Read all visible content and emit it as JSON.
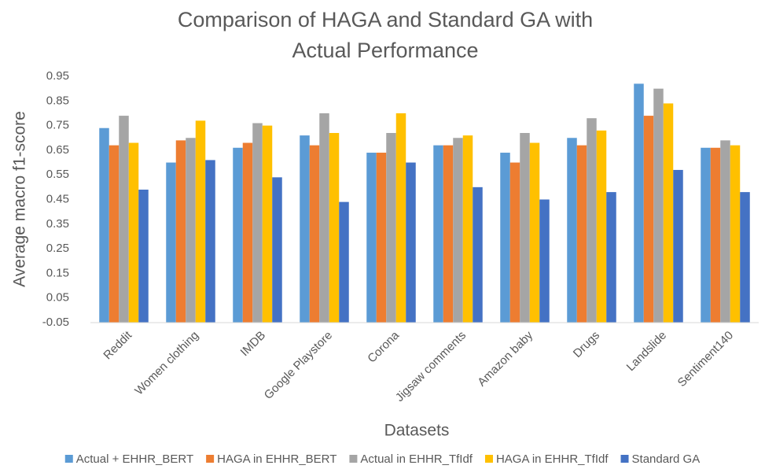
{
  "chart_data": {
    "type": "bar",
    "title": [
      "Comparison of HAGA and Standard GA with",
      "Actual Performance"
    ],
    "x_label": "Datasets",
    "y_label": "Average macro f1-score",
    "categories": [
      "Reddit",
      "Women clothing",
      "IMDB",
      "Google Playstore",
      "Corona",
      "Jigsaw comments",
      "Amazon baby",
      "Drugs",
      "Landslide",
      "Sentiment140"
    ],
    "series": [
      {
        "name": "Actual + EHHR_BERT",
        "color": "#5b9bd5",
        "values": [
          0.74,
          0.6,
          0.66,
          0.71,
          0.64,
          0.67,
          0.64,
          0.7,
          0.92,
          0.66
        ]
      },
      {
        "name": "HAGA in EHHR_BERT",
        "color": "#ed7d31",
        "values": [
          0.67,
          0.69,
          0.68,
          0.67,
          0.64,
          0.67,
          0.6,
          0.67,
          0.79,
          0.66
        ]
      },
      {
        "name": "Actual in EHHR_TfIdf",
        "color": "#a5a5a5",
        "values": [
          0.79,
          0.7,
          0.76,
          0.8,
          0.72,
          0.7,
          0.72,
          0.78,
          0.9,
          0.69
        ]
      },
      {
        "name": "HAGA in EHHR_TfIdf",
        "color": "#ffc000",
        "values": [
          0.68,
          0.77,
          0.75,
          0.72,
          0.8,
          0.71,
          0.68,
          0.73,
          0.84,
          0.67
        ]
      },
      {
        "name": "Standard GA",
        "color": "#4472c4",
        "values": [
          0.49,
          0.61,
          0.54,
          0.44,
          0.6,
          0.5,
          0.45,
          0.48,
          0.57,
          0.48
        ]
      }
    ],
    "ylim": [
      -0.05,
      0.95
    ],
    "yticks": [
      -0.05,
      0.05,
      0.15,
      0.25,
      0.35,
      0.45,
      0.55,
      0.65,
      0.75,
      0.85,
      0.95
    ],
    "grid": false,
    "legend": "bottom"
  }
}
